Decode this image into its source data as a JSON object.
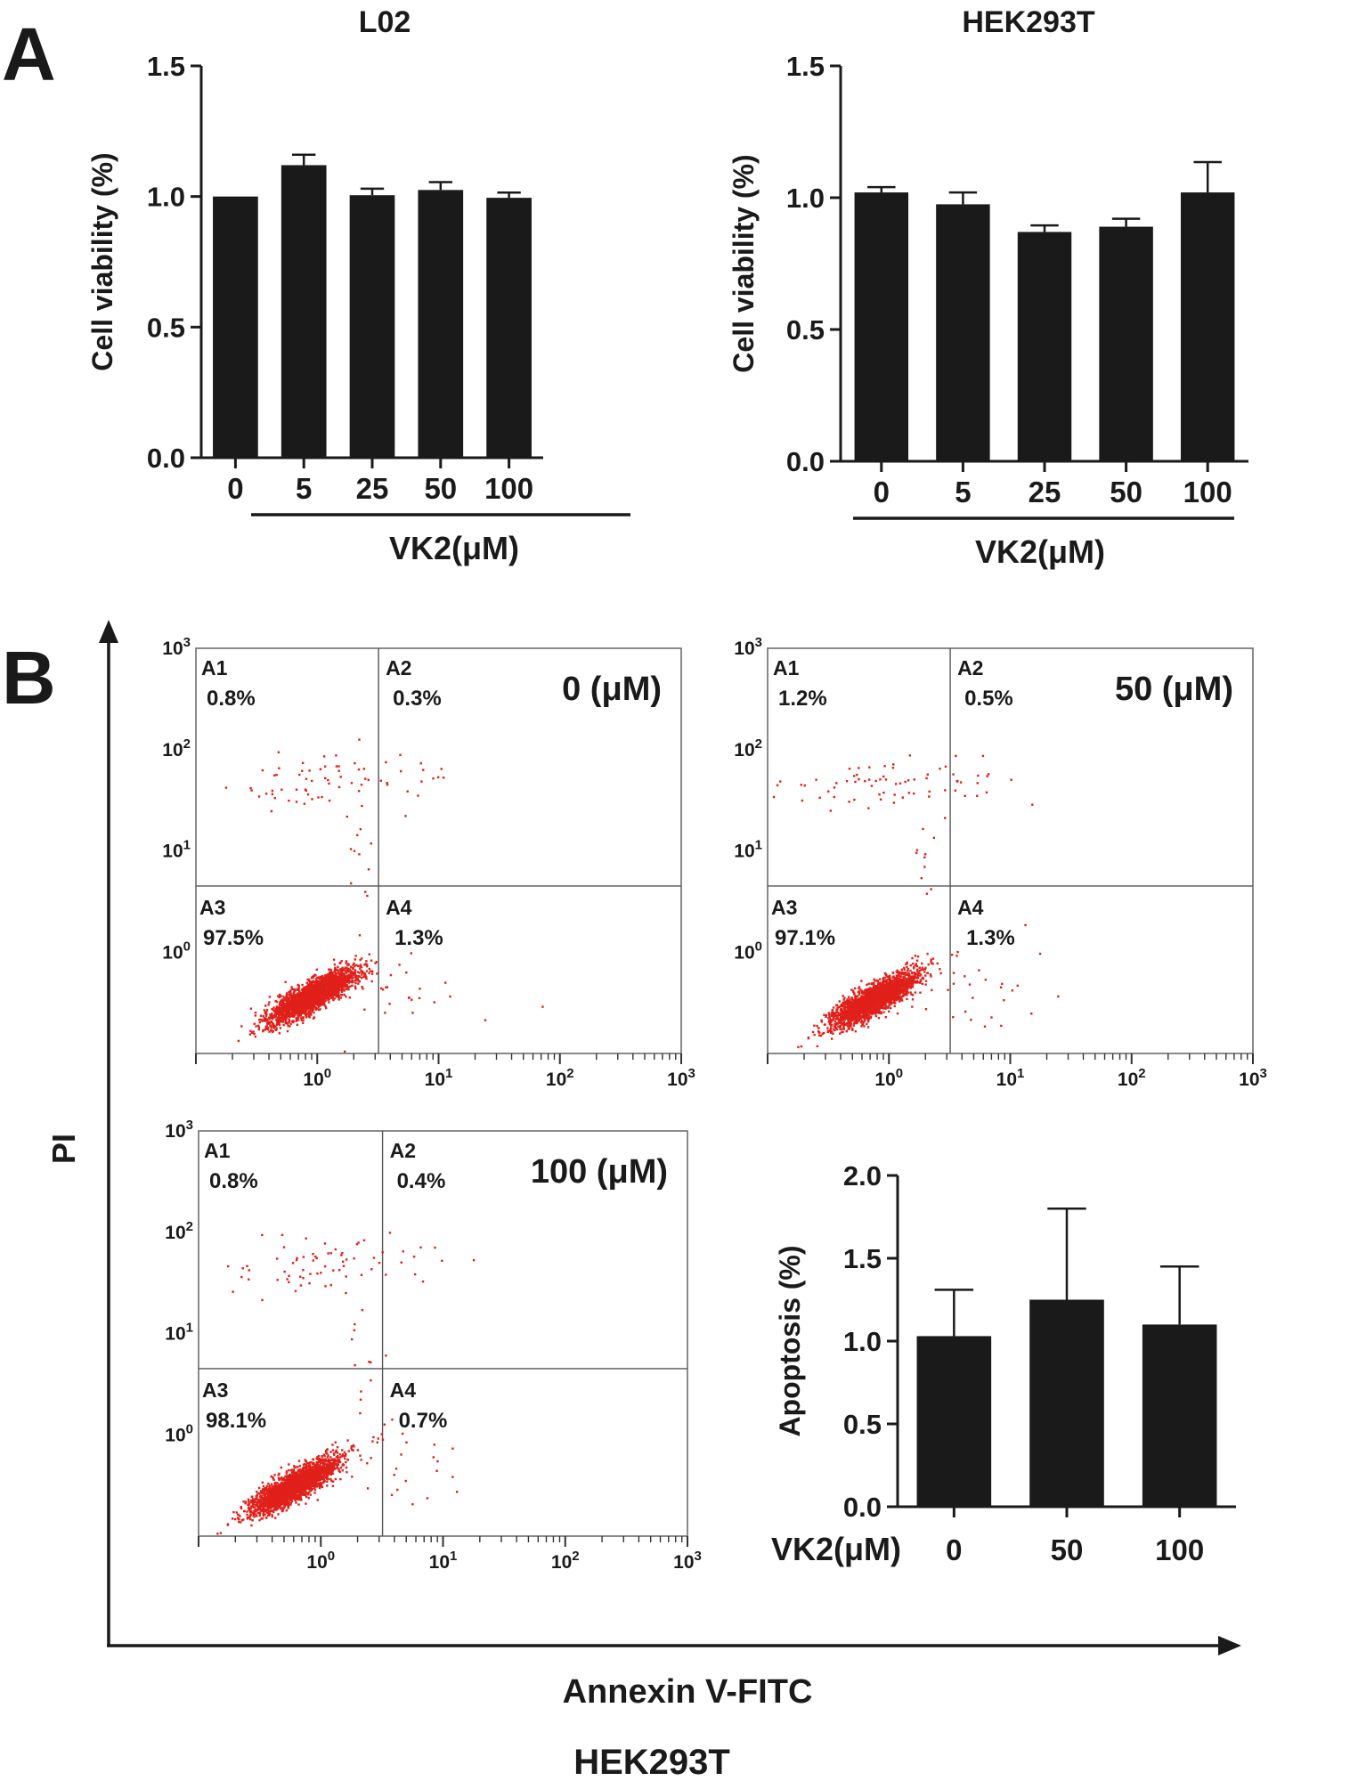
{
  "figure": {
    "panel_a_label": "A",
    "panel_b_label": "B",
    "big_axis_y_label": "PI",
    "big_axis_x_label": "Annexin V-FITC",
    "caption": "HEK293T"
  },
  "chart_data": [
    {
      "id": "bar-L02",
      "type": "bar",
      "title": "L02",
      "categories": [
        "0",
        "5",
        "25",
        "50",
        "100"
      ],
      "values": [
        1.0,
        1.12,
        1.005,
        1.025,
        0.995
      ],
      "errors": [
        0.0,
        0.04,
        0.025,
        0.03,
        0.02
      ],
      "ylabel": "Cell viability (%)",
      "xlabel": "VK2(μM)",
      "ylim": [
        0,
        1.5
      ],
      "yticks": [
        "0.0",
        "0.5",
        "1.0",
        "1.5"
      ]
    },
    {
      "id": "bar-HEK293T",
      "type": "bar",
      "title": "HEK293T",
      "categories": [
        "0",
        "5",
        "25",
        "50",
        "100"
      ],
      "values": [
        1.02,
        0.975,
        0.87,
        0.89,
        1.02
      ],
      "errors": [
        0.02,
        0.045,
        0.025,
        0.03,
        0.115
      ],
      "ylabel": "Cell viability (%)",
      "xlabel": "VK2(μM)",
      "ylim": [
        0,
        1.5
      ],
      "yticks": [
        "0.0",
        "0.5",
        "1.0",
        "1.5"
      ]
    },
    {
      "id": "flow-0",
      "type": "scatter",
      "title": "0 (μM)",
      "xscale": "log",
      "yscale": "log",
      "xlim": [
        0.1,
        1000
      ],
      "ylim": [
        0.1,
        1000
      ],
      "ytick_labels": [
        "10^0",
        "10^1",
        "10^2",
        "10^3"
      ],
      "xtick_labels": [
        "10^0",
        "10^1",
        "10^2",
        "10^3"
      ],
      "gate": {
        "x": 3.2,
        "y": 4.5
      },
      "quadrants": [
        {
          "name": "A1",
          "value": "0.8%"
        },
        {
          "name": "A2",
          "value": "0.3%"
        },
        {
          "name": "A3",
          "value": "97.5%"
        },
        {
          "name": "A4",
          "value": "1.3%"
        }
      ],
      "population_center": {
        "x": 0.9,
        "y": 0.38
      }
    },
    {
      "id": "flow-50",
      "type": "scatter",
      "title": "50 (μM)",
      "xscale": "log",
      "yscale": "log",
      "xlim": [
        0.1,
        1000
      ],
      "ylim": [
        0.1,
        1000
      ],
      "ytick_labels": [
        "10^0",
        "10^1",
        "10^2",
        "10^3"
      ],
      "xtick_labels": [
        "10^0",
        "10^1",
        "10^2",
        "10^3"
      ],
      "gate": {
        "x": 3.2,
        "y": 4.5
      },
      "quadrants": [
        {
          "name": "A1",
          "value": "1.2%"
        },
        {
          "name": "A2",
          "value": "0.5%"
        },
        {
          "name": "A3",
          "value": "97.1%"
        },
        {
          "name": "A4",
          "value": "1.3%"
        }
      ],
      "population_center": {
        "x": 0.75,
        "y": 0.35
      }
    },
    {
      "id": "flow-100",
      "type": "scatter",
      "title": "100 (μM)",
      "xscale": "log",
      "yscale": "log",
      "xlim": [
        0.1,
        1000
      ],
      "ylim": [
        0.1,
        1000
      ],
      "ytick_labels": [
        "10^0",
        "10^1",
        "10^2",
        "10^3"
      ],
      "xtick_labels": [
        "10^0",
        "10^1",
        "10^2",
        "10^3"
      ],
      "gate": {
        "x": 3.2,
        "y": 4.5
      },
      "quadrants": [
        {
          "name": "A1",
          "value": "0.8%"
        },
        {
          "name": "A2",
          "value": "0.4%"
        },
        {
          "name": "A3",
          "value": "98.1%"
        },
        {
          "name": "A4",
          "value": "0.7%"
        }
      ],
      "population_center": {
        "x": 0.6,
        "y": 0.32
      }
    },
    {
      "id": "bar-apoptosis",
      "type": "bar",
      "title": "",
      "categories": [
        "0",
        "50",
        "100"
      ],
      "values": [
        1.03,
        1.25,
        1.1
      ],
      "errors": [
        0.28,
        0.55,
        0.35
      ],
      "ylabel": "Apoptosis (%)",
      "xlabel": "VK2(μM)",
      "ylim": [
        0,
        2.0
      ],
      "yticks": [
        "0.0",
        "0.5",
        "1.0",
        "1.5",
        "2.0"
      ]
    }
  ],
  "colors": {
    "bar_fill": "#1a1a1a",
    "axis": "#1a1a1a",
    "dots": "#e0201a",
    "gate": "#555555"
  }
}
